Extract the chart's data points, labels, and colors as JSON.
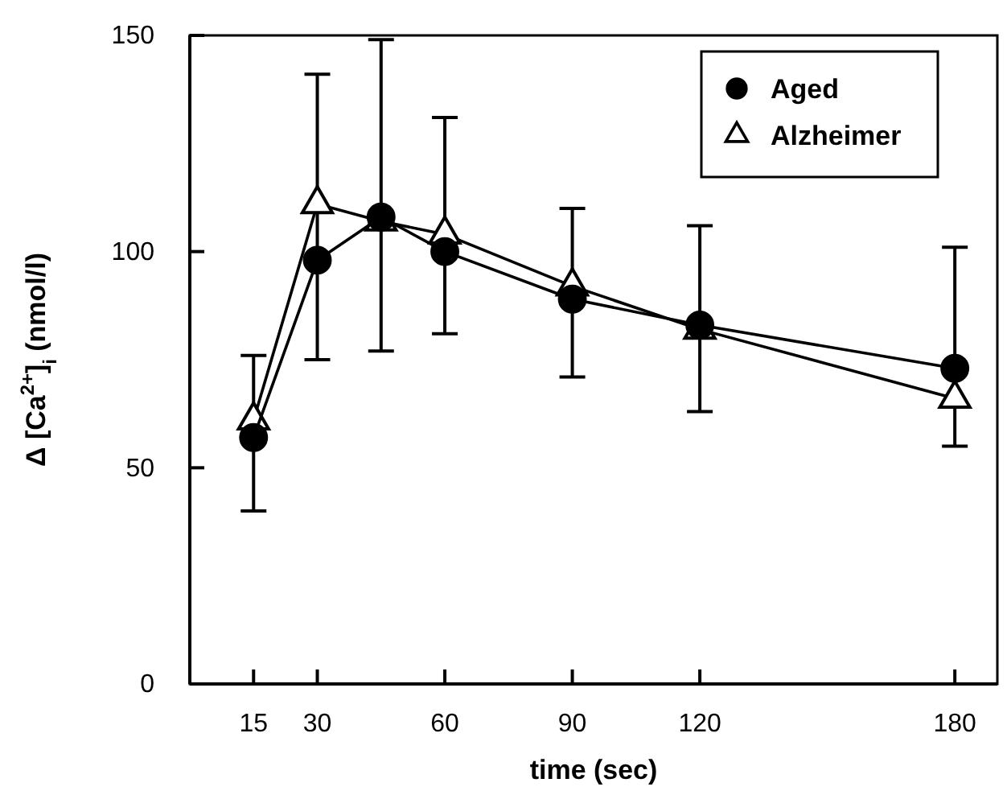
{
  "chart_data": {
    "type": "line",
    "xlabel": "time (sec)",
    "ylabel": "Δ [Ca$^{2+}$]$_{i}$ (nmol/l)",
    "x": [
      15,
      30,
      45,
      60,
      90,
      120,
      180
    ],
    "series": [
      {
        "name": "Aged",
        "color": "#000000",
        "marker": "circle",
        "values": [
          57,
          98,
          108,
          100,
          89,
          83,
          73
        ],
        "errors": [
          [
            40,
            76
          ],
          [
            75,
            141
          ],
          [
            77,
            149
          ],
          [
            81,
            131
          ],
          [
            71,
            110
          ],
          [
            63,
            106
          ],
          [
            55,
            101
          ]
        ]
      },
      {
        "name": "Alzheimer",
        "color": "#000000",
        "marker": "triangle",
        "values": [
          61,
          111,
          107,
          104,
          92,
          82,
          66
        ]
      }
    ],
    "xlim": [
      0,
      190
    ],
    "ylim": [
      0,
      150
    ],
    "xticks": [
      15,
      30,
      60,
      90,
      120,
      180
    ],
    "yticks": [
      0,
      50,
      100,
      150
    ],
    "legend": "top right",
    "grid": false,
    "line_style": "solid"
  }
}
